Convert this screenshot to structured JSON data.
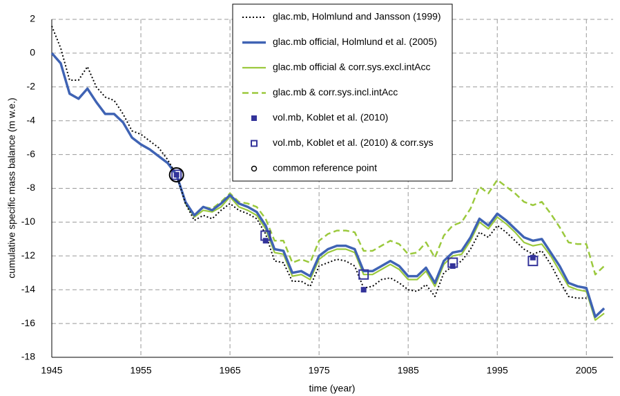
{
  "chart_data": {
    "type": "line",
    "xlabel": "time (year)",
    "ylabel": "cumulative specific mass balance (m w.e.)",
    "x": [
      1945,
      1946,
      1947,
      1948,
      1949,
      1950,
      1951,
      1952,
      1953,
      1954,
      1955,
      1956,
      1957,
      1958,
      1959,
      1960,
      1961,
      1962,
      1963,
      1964,
      1965,
      1966,
      1967,
      1968,
      1969,
      1970,
      1971,
      1972,
      1973,
      1974,
      1975,
      1976,
      1977,
      1978,
      1979,
      1980,
      1981,
      1982,
      1983,
      1984,
      1985,
      1986,
      1987,
      1988,
      1989,
      1990,
      1991,
      1992,
      1993,
      1994,
      1995,
      1996,
      1997,
      1998,
      1999,
      2000,
      2001,
      2002,
      2003,
      2004,
      2005,
      2006,
      2007
    ],
    "series": [
      {
        "name": "glac.mb, Holmlund and Jansson (1999)",
        "color": "#000000",
        "style": "dotted",
        "values": [
          1.6,
          0.3,
          -1.6,
          -1.6,
          -0.8,
          -2.0,
          -2.6,
          -2.8,
          -3.6,
          -4.6,
          -4.8,
          -5.2,
          -5.6,
          -6.3,
          -7.2,
          -8.9,
          -9.9,
          -9.6,
          -9.8,
          -9.3,
          -8.9,
          -9.3,
          -9.5,
          -9.8,
          -10.7,
          -12.3,
          -12.4,
          -13.5,
          -13.5,
          -13.8,
          -12.6,
          -12.4,
          -12.2,
          -12.3,
          -12.6,
          -13.9,
          -13.8,
          -13.4,
          -13.3,
          -13.6,
          -14.0,
          -14.1,
          -13.7,
          -14.4,
          -13.0,
          -12.6,
          -12.3,
          -11.6,
          -10.6,
          -10.9,
          -10.2,
          -10.6,
          -11.1,
          -11.6,
          -11.9,
          -11.7,
          -12.5,
          -13.5,
          -14.4,
          -14.5,
          -14.5,
          null,
          null
        ]
      },
      {
        "name": "glac.mb official, Holmlund et al. (2005)",
        "color": "#3f63b4",
        "style": "thick",
        "values": [
          0,
          -0.6,
          -2.4,
          -2.7,
          -2.1,
          -2.9,
          -3.6,
          -3.6,
          -4.1,
          -5.0,
          -5.4,
          -5.7,
          -6.1,
          -6.5,
          -7.2,
          -8.8,
          -9.6,
          -9.1,
          -9.3,
          -8.9,
          -8.4,
          -8.9,
          -9.1,
          -9.4,
          -10.2,
          -11.6,
          -11.7,
          -13.0,
          -12.9,
          -13.2,
          -12.0,
          -11.6,
          -11.4,
          -11.4,
          -11.6,
          -12.9,
          -12.9,
          -12.6,
          -12.3,
          -12.6,
          -13.2,
          -13.2,
          -12.7,
          -13.6,
          -12.3,
          -11.8,
          -11.7,
          -10.9,
          -9.8,
          -10.2,
          -9.5,
          -9.9,
          -10.4,
          -10.9,
          -11.1,
          -11.0,
          -11.8,
          -12.6,
          -13.6,
          -13.8,
          -13.9,
          -15.6,
          -15.1
        ]
      },
      {
        "name": "glac.mb official & corr.sys.excl.intAcc",
        "color": "#9bc93d",
        "style": "solid",
        "values": [
          null,
          null,
          null,
          null,
          null,
          null,
          null,
          null,
          null,
          null,
          null,
          null,
          null,
          null,
          -7.2,
          -8.9,
          -9.7,
          -9.3,
          -9.4,
          -9.1,
          -8.5,
          -9.1,
          -9.3,
          -9.6,
          -10.4,
          -11.8,
          -11.9,
          -13.2,
          -13.1,
          -13.4,
          -12.2,
          -11.8,
          -11.6,
          -11.6,
          -11.8,
          -13.1,
          -13.1,
          -12.8,
          -12.5,
          -12.8,
          -13.4,
          -13.4,
          -12.9,
          -13.8,
          -12.5,
          -12.0,
          -11.9,
          -11.1,
          -10.0,
          -10.4,
          -9.7,
          -10.1,
          -10.6,
          -11.2,
          -11.4,
          -11.3,
          -12.0,
          -12.9,
          -13.8,
          -14.0,
          -14.1,
          -15.8,
          -15.4
        ]
      },
      {
        "name": "glac.mb & corr.sys.incl.intAcc",
        "color": "#9bc93d",
        "style": "dashed",
        "values": [
          null,
          null,
          null,
          null,
          null,
          null,
          null,
          null,
          null,
          null,
          null,
          null,
          null,
          null,
          -7.2,
          -8.8,
          -9.6,
          -9.1,
          -9.2,
          -8.8,
          -8.3,
          -8.8,
          -8.9,
          -9.1,
          -9.8,
          -11.1,
          -11.1,
          -12.4,
          -12.2,
          -12.4,
          -11.1,
          -10.7,
          -10.5,
          -10.5,
          -10.6,
          -11.7,
          -11.7,
          -11.4,
          -11.1,
          -11.3,
          -11.9,
          -11.8,
          -11.2,
          -12.1,
          -10.8,
          -10.2,
          -10.0,
          -9.2,
          -7.9,
          -8.3,
          -7.5,
          -7.9,
          -8.3,
          -8.8,
          -9.0,
          -8.8,
          -9.5,
          -10.3,
          -11.2,
          -11.3,
          -11.3,
          -13.1,
          -12.6
        ]
      },
      {
        "name": "vol.mb, Koblet et al. (2010)",
        "color": "#33339a",
        "style": "square-filled",
        "x": [
          1959,
          1969,
          1980,
          1990,
          1999
        ],
        "values": [
          -7.2,
          -11.1,
          -14.0,
          -12.6,
          -12.1
        ]
      },
      {
        "name": "vol.mb, Koblet et al. (2010) & corr.sys",
        "color": "#33339a",
        "style": "square-open",
        "x": [
          1959,
          1969,
          1980,
          1990,
          1999
        ],
        "values": [
          -7.2,
          -10.8,
          -13.1,
          -12.4,
          -12.3
        ]
      },
      {
        "name": "common reference point",
        "color": "#000000",
        "style": "circle",
        "x": [
          1959
        ],
        "values": [
          -7.2
        ]
      }
    ],
    "xlim": [
      1945,
      2008
    ],
    "xticks": [
      1945,
      1955,
      1965,
      1975,
      1985,
      1995,
      2005
    ],
    "ylim": [
      -18,
      2
    ],
    "yticks": [
      -18,
      -16,
      -14,
      -12,
      -10,
      -8,
      -6,
      -4,
      -2,
      0,
      2
    ],
    "grid": true,
    "legend": "top"
  }
}
